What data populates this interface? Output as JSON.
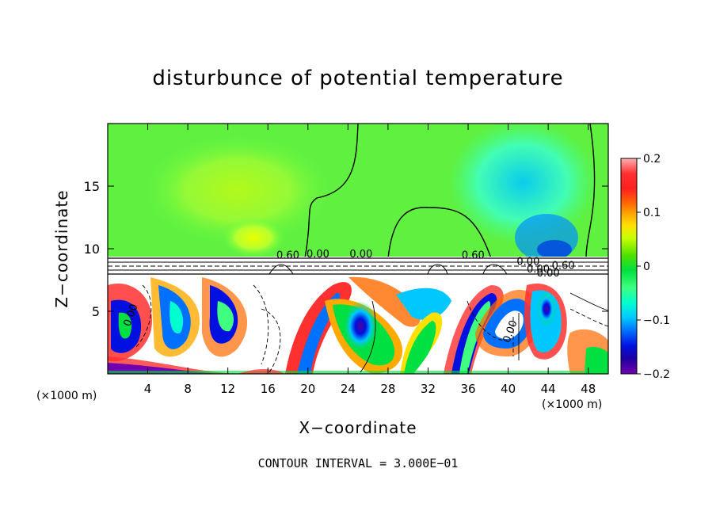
{
  "chart_data": {
    "type": "heatmap",
    "title": "disturbunce of potential temperature",
    "xlabel": "X−coordinate",
    "ylabel": "Z−coordinate",
    "x_unit": "(×1000 m)",
    "x_unit_right": "(×1000 m)",
    "xlim": [
      0,
      50
    ],
    "ylim": [
      0,
      20
    ],
    "x_ticks": [
      4,
      8,
      12,
      16,
      20,
      24,
      28,
      32,
      36,
      40,
      44,
      48
    ],
    "y_ticks": [
      5,
      10,
      15
    ],
    "colorbar": {
      "range": [
        -0.2,
        0.2
      ],
      "tick_labels": [
        "0.2",
        "0.1",
        "0",
        "−0.1",
        "−0.2"
      ],
      "tick_values": [
        0.2,
        0.1,
        0,
        -0.1,
        -0.2
      ],
      "colors": [
        "#ffb0b0",
        "#ff3030",
        "#ff6a00",
        "#ffaa00",
        "#ffe000",
        "#c8ff00",
        "#50e000",
        "#00e040",
        "#40ff80",
        "#00ffd0",
        "#00c8ff",
        "#0070ff",
        "#0010e0",
        "#2000a0",
        "#7000b0"
      ]
    },
    "contour_labels": [
      "0.60",
      "0.00",
      "0.00",
      "0.60",
      "0.00",
      "0.60",
      "0.00",
      "0.00",
      "0.00",
      "0.00"
    ],
    "note": "CONTOUR INTERVAL = 3.000E−01"
  }
}
